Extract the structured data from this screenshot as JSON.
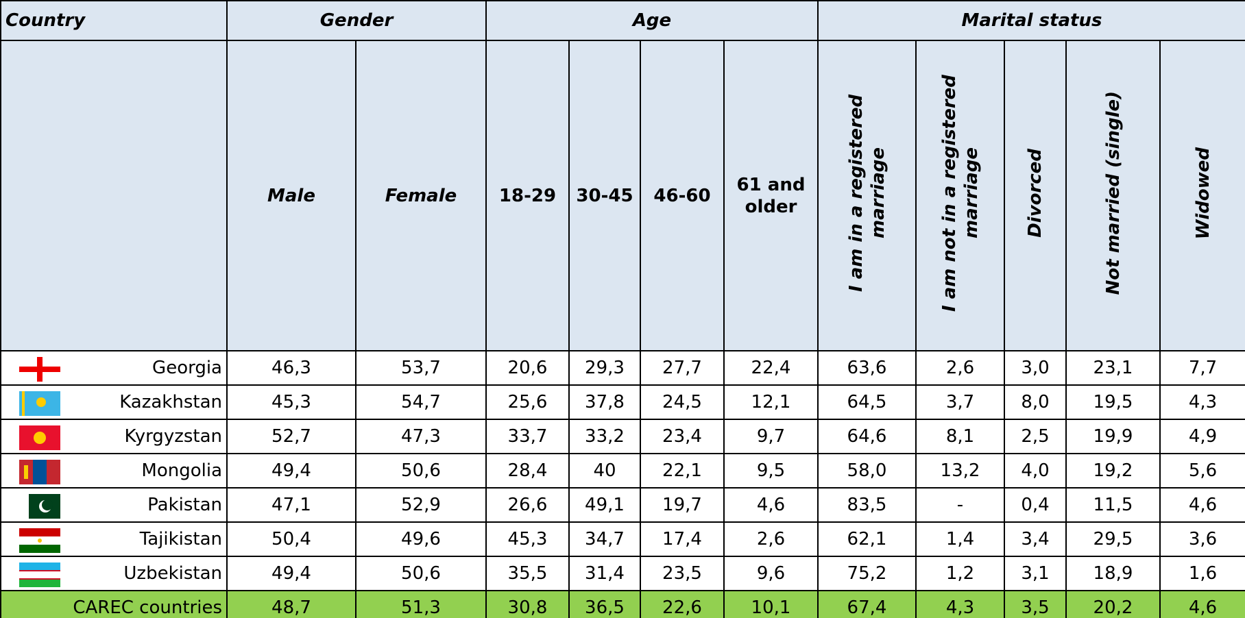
{
  "table": {
    "groups": [
      "Country",
      "Gender",
      "Age",
      "Marital status"
    ],
    "columns": [
      "Male",
      "Female",
      "18-29",
      "30-45",
      "46-60",
      "61 and older",
      "I am in a registered marriage",
      "I am not in a registered marriage",
      "Divorced",
      "Not married (single)",
      "Widowed"
    ],
    "rows": [
      {
        "country": "Georgia",
        "cells": [
          "46,3",
          "53,7",
          "20,6",
          "29,3",
          "27,7",
          "22,4",
          "63,6",
          "2,6",
          "3,0",
          "23,1",
          "7,7"
        ]
      },
      {
        "country": "Kazakhstan",
        "cells": [
          "45,3",
          "54,7",
          "25,6",
          "37,8",
          "24,5",
          "12,1",
          "64,5",
          "3,7",
          "8,0",
          "19,5",
          "4,3"
        ]
      },
      {
        "country": "Kyrgyzstan",
        "cells": [
          "52,7",
          "47,3",
          "33,7",
          "33,2",
          "23,4",
          "9,7",
          "64,6",
          "8,1",
          "2,5",
          "19,9",
          "4,9"
        ]
      },
      {
        "country": "Mongolia",
        "cells": [
          "49,4",
          "50,6",
          "28,4",
          "40",
          "22,1",
          "9,5",
          "58,0",
          "13,2",
          "4,0",
          "19,2",
          "5,6"
        ]
      },
      {
        "country": "Pakistan",
        "cells": [
          "47,1",
          "52,9",
          "26,6",
          "49,1",
          "19,7",
          "4,6",
          "83,5",
          "-",
          "0,4",
          "11,5",
          "4,6"
        ]
      },
      {
        "country": "Tajikistan",
        "cells": [
          "50,4",
          "49,6",
          "45,3",
          "34,7",
          "17,4",
          "2,6",
          "62,1",
          "1,4",
          "3,4",
          "29,5",
          "3,6"
        ]
      },
      {
        "country": "Uzbekistan",
        "cells": [
          "49,4",
          "50,6",
          "35,5",
          "31,4",
          "23,5",
          "9,6",
          "75,2",
          "1,2",
          "3,1",
          "18,9",
          "1,6"
        ]
      }
    ],
    "total": {
      "country": "CAREC countries",
      "cells": [
        "48,7",
        "51,3",
        "30,8",
        "36,5",
        "22,6",
        "10,1",
        "67,4",
        "4,3",
        "3,5",
        "20,2",
        "4,6"
      ]
    }
  }
}
